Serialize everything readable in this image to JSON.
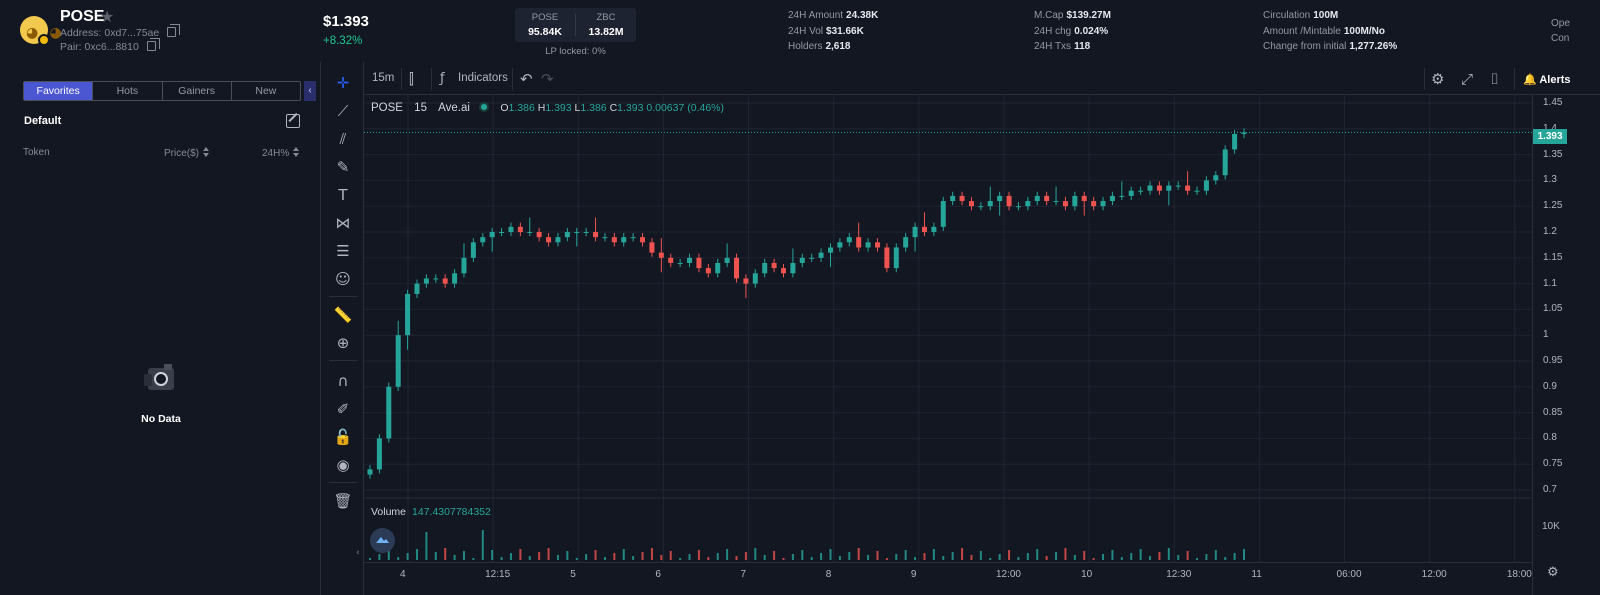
{
  "token": {
    "name": "POSE",
    "address_label": "Address: 0xd7...75ae",
    "pair_label": "Pair: 0xc6...8810"
  },
  "price": {
    "value": "$1.393",
    "change": "+8.32%"
  },
  "liquidity": {
    "base_name": "POSE",
    "base_value": "95.84K",
    "quote_name": "ZBC",
    "quote_value": "13.82M",
    "locked": "LP locked: 0%"
  },
  "stats": [
    {
      "label": "24H Amount",
      "value": "24.38K"
    },
    {
      "label": "24H Vol",
      "value": "$31.66K"
    },
    {
      "label": "Holders",
      "value": "2,618"
    },
    {
      "label": "M.Cap",
      "value": "$139.27M"
    },
    {
      "label": "24H chg",
      "value": "0.024%"
    },
    {
      "label": "24H Txs",
      "value": "118"
    },
    {
      "label": "Circulation",
      "value": "100M"
    },
    {
      "label": "Amount /Mintable",
      "value": "100M/No"
    },
    {
      "label": "Change from initial",
      "value": "1,277.26%"
    },
    {
      "label": "Ope",
      "value": ""
    },
    {
      "label": "Con",
      "value": ""
    }
  ],
  "left_panel": {
    "tabs": [
      "Favorites",
      "Hots",
      "Gainers",
      "New"
    ],
    "active_tab": "Favorites",
    "group": "Default",
    "col_token": "Token",
    "col_price": "Price($)",
    "col_change": "24H%",
    "empty": "No Data"
  },
  "toolbar": {
    "interval": "15m",
    "indicators": "Indicators",
    "alerts": "Alerts"
  },
  "legend": {
    "symbol": "POSE",
    "interval": "15",
    "source": "Ave.ai",
    "o_key": "O",
    "o": "1.386",
    "h_key": "H",
    "h": "1.393",
    "l_key": "L",
    "l": "1.386",
    "c_key": "C",
    "c": "1.393",
    "chg": "0.00637 (0.46%)"
  },
  "volume": {
    "label": "Volume",
    "value": "147.4307784352",
    "axis": "10K"
  },
  "colors": {
    "up": "#26a69a",
    "down": "#ef5350",
    "accent": "#4b57d1",
    "background": "#131722"
  },
  "chart_data": {
    "type": "candlestick",
    "symbol": "POSE",
    "interval": "15",
    "last_price": "1.393",
    "ylim": [
      0.7,
      1.45
    ],
    "y_ticks": [
      "1.45",
      "1.4",
      "1.35",
      "1.3",
      "1.25",
      "1.2",
      "1.15",
      "1.1",
      "1.05",
      "1",
      "0.95",
      "0.9",
      "0.85",
      "0.8",
      "0.75",
      "0.7"
    ],
    "x_ticks": [
      "4",
      "12:15",
      "5",
      "6",
      "7",
      "8",
      "9",
      "12:00",
      "10",
      "12:30",
      "11",
      "06:00",
      "12:00",
      "18:00"
    ],
    "close_series": [
      0.74,
      0.8,
      0.9,
      1.0,
      1.08,
      1.1,
      1.11,
      1.11,
      1.1,
      1.12,
      1.15,
      1.18,
      1.19,
      1.2,
      1.2,
      1.21,
      1.2,
      1.2,
      1.19,
      1.18,
      1.19,
      1.2,
      1.2,
      1.2,
      1.19,
      1.19,
      1.18,
      1.19,
      1.19,
      1.18,
      1.16,
      1.15,
      1.14,
      1.14,
      1.15,
      1.13,
      1.12,
      1.14,
      1.15,
      1.11,
      1.1,
      1.12,
      1.14,
      1.13,
      1.12,
      1.14,
      1.15,
      1.15,
      1.16,
      1.17,
      1.18,
      1.19,
      1.17,
      1.18,
      1.17,
      1.13,
      1.17,
      1.19,
      1.21,
      1.2,
      1.21,
      1.26,
      1.27,
      1.26,
      1.25,
      1.25,
      1.26,
      1.27,
      1.25,
      1.25,
      1.26,
      1.27,
      1.26,
      1.26,
      1.25,
      1.27,
      1.26,
      1.25,
      1.26,
      1.27,
      1.27,
      1.28,
      1.28,
      1.29,
      1.28,
      1.29,
      1.29,
      1.28,
      1.28,
      1.3,
      1.31,
      1.36,
      1.39,
      1.393
    ]
  }
}
